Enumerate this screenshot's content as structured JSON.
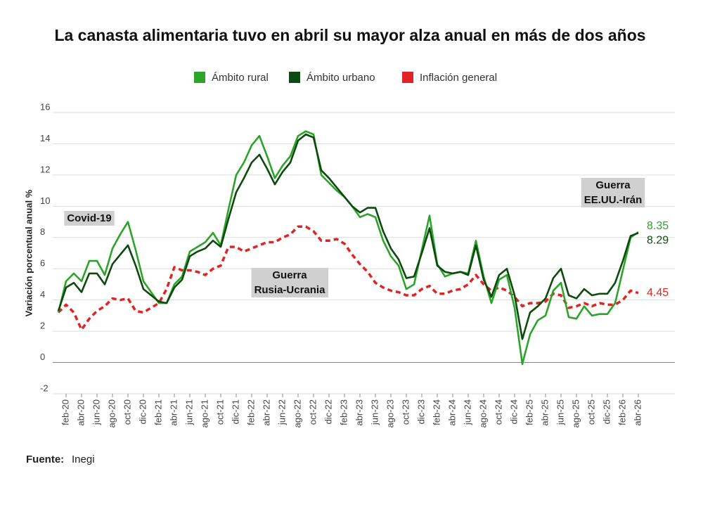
{
  "chart_data": {
    "type": "line",
    "title": "La canasta alimentaria tuvo en abril su mayor alza anual en más de dos años",
    "y_label": "Variación porcentual anual %",
    "source_label": "Fuente:",
    "source": "Inegi",
    "categories": [
      null,
      "feb-20",
      null,
      "abr-20",
      null,
      "jun-20",
      null,
      "ago-20",
      null,
      "oct-20",
      null,
      "dic-20",
      null,
      "feb-21",
      null,
      "abr-21",
      null,
      "jun-21",
      null,
      "ago-21",
      null,
      "oct-21",
      null,
      "dic-21",
      null,
      "feb-22",
      null,
      "abr-22",
      null,
      "jun-22",
      null,
      "ago-22",
      null,
      "oct-22",
      null,
      "dic-22",
      null,
      "feb-23",
      null,
      "abr-23",
      null,
      "jun-23",
      null,
      "ago-23",
      null,
      "oct-23",
      null,
      "dic-23",
      null,
      "feb-24",
      null,
      "abr-24",
      null,
      "jun-24",
      null,
      "ago-24",
      null,
      "oct-24",
      null,
      "dic-24",
      null,
      "feb-25",
      null,
      "abr-25",
      null,
      "jun-25",
      null,
      "ago-25",
      null,
      "oct-25",
      null,
      "dic-25",
      null,
      "feb-26",
      null,
      "abr-26"
    ],
    "series": [
      {
        "name": "Ámbito rural",
        "color": "#2aa52a",
        "dash": false,
        "values": [
          3.2,
          5.2,
          5.7,
          5.2,
          6.5,
          6.5,
          5.6,
          7.3,
          8.2,
          9.0,
          7.2,
          5.2,
          4.5,
          3.8,
          3.8,
          5.0,
          5.5,
          7.1,
          7.4,
          7.7,
          8.3,
          7.5,
          9.8,
          12.0,
          12.8,
          13.9,
          14.5,
          13.2,
          11.8,
          12.6,
          13.2,
          14.5,
          14.8,
          14.6,
          12.0,
          11.5,
          11.0,
          10.6,
          10.0,
          9.3,
          9.5,
          9.3,
          7.8,
          6.8,
          6.2,
          4.7,
          5.0,
          7.2,
          9.4,
          6.3,
          5.5,
          5.7,
          5.8,
          5.7,
          7.8,
          5.5,
          3.8,
          5.3,
          5.6,
          3.5,
          -0.1,
          1.8,
          2.7,
          3.0,
          4.6,
          5.1,
          2.9,
          2.8,
          3.6,
          3.0,
          3.1,
          3.1,
          3.8,
          5.9,
          8.0,
          8.35
        ]
      },
      {
        "name": "Ámbito urbano",
        "color": "#0d4a0d",
        "dash": false,
        "values": [
          3.3,
          4.8,
          5.1,
          4.5,
          5.7,
          5.7,
          5.0,
          6.3,
          6.9,
          7.5,
          6.2,
          4.7,
          4.3,
          3.9,
          3.8,
          4.8,
          5.3,
          6.8,
          7.1,
          7.3,
          7.8,
          7.4,
          9.2,
          10.9,
          11.8,
          12.8,
          13.3,
          12.4,
          11.4,
          12.2,
          12.8,
          14.2,
          14.6,
          14.4,
          12.3,
          11.8,
          11.2,
          10.6,
          10.0,
          9.6,
          9.9,
          9.9,
          8.4,
          7.3,
          6.6,
          5.4,
          5.5,
          7.0,
          8.6,
          6.2,
          5.8,
          5.7,
          5.8,
          5.6,
          7.5,
          5.3,
          4.2,
          5.6,
          6.0,
          4.3,
          1.5,
          3.2,
          3.6,
          4.1,
          5.4,
          6.0,
          4.3,
          4.1,
          4.7,
          4.3,
          4.4,
          4.4,
          5.1,
          6.5,
          8.1,
          8.29
        ]
      },
      {
        "name": "Inflación general",
        "color": "#e02424",
        "dash": true,
        "values": [
          3.2,
          3.7,
          3.2,
          2.1,
          2.8,
          3.3,
          3.6,
          4.1,
          4.0,
          4.1,
          3.3,
          3.2,
          3.5,
          3.8,
          4.7,
          6.1,
          5.9,
          5.9,
          5.8,
          5.6,
          6.0,
          6.2,
          7.4,
          7.4,
          7.1,
          7.3,
          7.5,
          7.7,
          7.7,
          8.0,
          8.2,
          8.7,
          8.7,
          8.4,
          7.8,
          7.8,
          7.9,
          7.6,
          6.9,
          6.3,
          5.8,
          5.1,
          4.8,
          4.6,
          4.5,
          4.3,
          4.3,
          4.7,
          4.9,
          4.4,
          4.4,
          4.6,
          4.7,
          5.0,
          5.6,
          5.0,
          4.6,
          4.8,
          4.6,
          4.2,
          3.6,
          3.8,
          3.8,
          3.9,
          4.4,
          4.3,
          3.5,
          3.6,
          3.8,
          3.6,
          3.8,
          3.7,
          3.7,
          4.0,
          4.6,
          4.45
        ]
      }
    ],
    "ylim": [
      -2,
      16
    ],
    "yticks": [
      -2,
      0,
      2,
      4,
      6,
      8,
      10,
      12,
      14,
      16
    ],
    "grid": true,
    "annotations": [
      {
        "lines": [
          "Covid-19"
        ]
      },
      {
        "lines": [
          "Guerra",
          "Rusia-Ucrania"
        ]
      },
      {
        "lines": [
          "Guerra",
          "EE.UU.-Irán"
        ]
      }
    ]
  }
}
